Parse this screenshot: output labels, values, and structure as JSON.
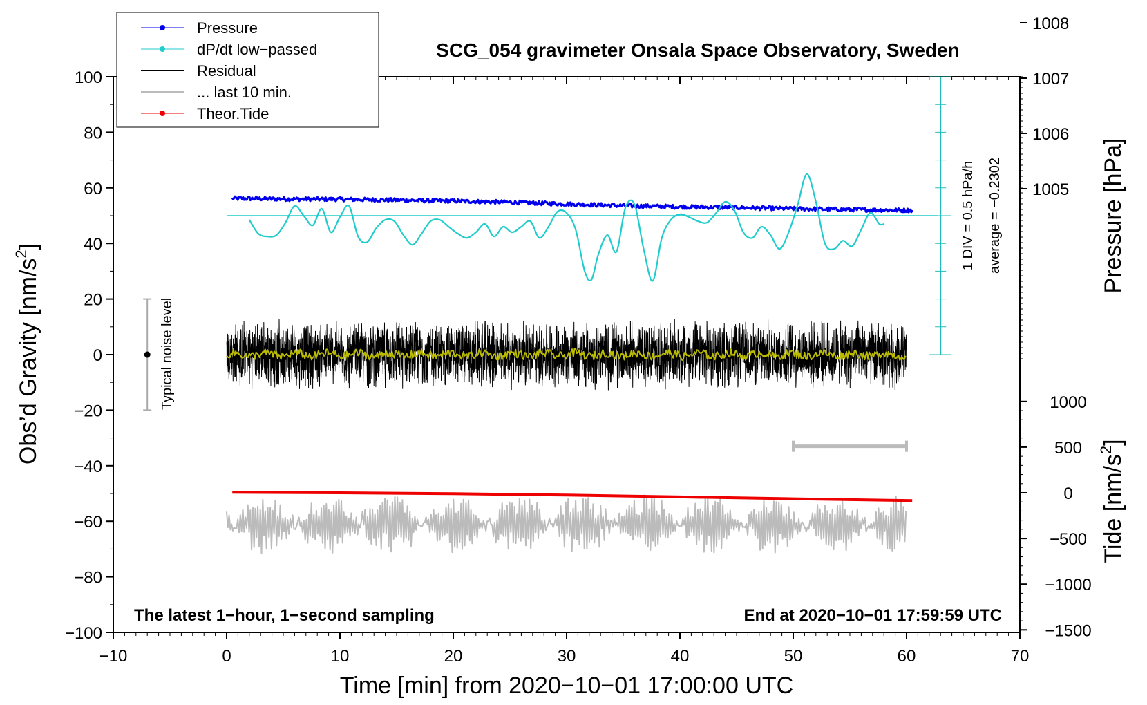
{
  "chart_data": {
    "type": "line",
    "title": "SCG_054 gravimeter Onsala Space Observatory, Sweden",
    "xlabel": "Time [min] from 2020−10−01 17:00:00 UTC",
    "ylabel": "Obs’d Gravity [nm/s",
    "ylabel_sup": "2",
    "ylabel_close": "]",
    "y2label": "Pressure [hPa]",
    "y3label": "Tide [nm/s",
    "y3label_sup": "2",
    "y3label_close": "]",
    "xlim": [
      -10,
      70
    ],
    "ylim": [
      -100,
      100
    ],
    "x_ticks": [
      "−10",
      "0",
      "10",
      "20",
      "30",
      "40",
      "50",
      "60",
      "70"
    ],
    "y_ticks": [
      "−100",
      "−80",
      "−60",
      "−40",
      "−20",
      "0",
      "20",
      "40",
      "60",
      "80",
      "100"
    ],
    "pressure_ticks": [
      "1005",
      "1006",
      "1007",
      "1008"
    ],
    "tide_ticks": [
      "−1500",
      "−1000",
      "−500",
      "0",
      "500",
      "1000"
    ],
    "legend": {
      "position": "top-left",
      "entries": [
        "Pressure",
        "dP/dt low−passed",
        "Residual",
        "... last 10 min.",
        "Theor.Tide"
      ]
    },
    "annotations": {
      "bottom_left": "The latest 1−hour, 1−second sampling",
      "bottom_right": "End at 2020−10−01 17:59:59 UTC",
      "noise_label": "Typical noise level",
      "div_label": "1 DIV = 0.5 hPa/h",
      "average_label": "average = −0.2302"
    },
    "noise_bar": {
      "x": -7,
      "y_center": 0,
      "y_min": -20,
      "y_max": 20
    },
    "scale_bar_10min": {
      "x_start": 50,
      "x_end": 60,
      "y": -33
    },
    "series": [
      {
        "name": "Pressure",
        "color": "#0000ee",
        "y_scale": "gravity-units",
        "x": [
          0.5,
          5,
          10,
          15,
          20,
          25,
          30,
          35,
          40,
          45,
          50,
          55,
          60.5
        ],
        "values": [
          56.2,
          56.0,
          55.9,
          55.6,
          55.3,
          54.8,
          54.2,
          53.6,
          53.2,
          52.9,
          52.5,
          52.2,
          51.9
        ]
      },
      {
        "name": "dP/dt low-passed",
        "color": "#22cccc",
        "y_scale": "gravity-units",
        "baseline": 50,
        "x": [
          2,
          2.8,
          3.6,
          4.4,
          5.2,
          6,
          6.8,
          7.6,
          8.4,
          9.2,
          10,
          10.8,
          11.6,
          12.4,
          13.2,
          14,
          14.8,
          15.6,
          16.4,
          17.2,
          18,
          18.8,
          19.6,
          20.4,
          21.2,
          22,
          22.8,
          23.6,
          24.4,
          25.2,
          26,
          26.8,
          27.6,
          28.4,
          29.2,
          30,
          30.8,
          31.6,
          32.2,
          32.8,
          33.6,
          34.4,
          35.2,
          36,
          36.8,
          37.6,
          38.4,
          39.2,
          40,
          40.8,
          41.6,
          42.4,
          43.2,
          44,
          44.8,
          45.6,
          46.4,
          47.2,
          48,
          48.8,
          49.6,
          50.4,
          51.2,
          52,
          52.8,
          53.6,
          54.4,
          55.2,
          56,
          56.8,
          57.6,
          58
        ],
        "values": [
          48.5,
          43.5,
          42.5,
          43,
          47.5,
          53.5,
          50,
          46.5,
          52.5,
          44,
          49.5,
          53.5,
          42.5,
          40.5,
          45.5,
          48.5,
          48,
          43,
          39.5,
          43.5,
          48,
          48.5,
          46,
          43.5,
          42,
          44,
          47,
          42.5,
          46,
          44,
          46,
          48,
          42,
          46,
          51.5,
          51,
          45,
          30,
          27,
          36,
          43,
          37,
          53,
          54,
          38,
          26.5,
          42,
          48.5,
          50.5,
          49.5,
          48,
          47.5,
          51,
          55,
          52,
          44,
          42,
          46,
          43,
          38,
          44,
          54,
          65,
          55,
          40,
          38,
          41,
          39,
          45,
          51,
          47,
          47
        ]
      },
      {
        "name": "Residual",
        "color": "#000000",
        "y_scale": "gravity-units",
        "x_range": [
          0,
          60
        ],
        "amplitude": 13,
        "mean": 0
      },
      {
        "name": "Residual smoothed",
        "color": "#bbbb00",
        "y_scale": "gravity-units",
        "x_range": [
          0,
          60
        ],
        "amplitude": 1.5,
        "mean": 0
      },
      {
        "name": "... last 10 min.",
        "color": "#bbbbbb",
        "y_scale": "gravity-units",
        "x_range": [
          0,
          60
        ],
        "amplitude": 11,
        "mean": -61
      },
      {
        "name": "Theor.Tide",
        "color": "#ee0000",
        "y_scale": "tide-units",
        "x": [
          0.5,
          10,
          20,
          30,
          40,
          50,
          60.5
        ],
        "values": [
          5,
          0,
          -10,
          -25,
          -45,
          -65,
          -85
        ]
      }
    ]
  }
}
